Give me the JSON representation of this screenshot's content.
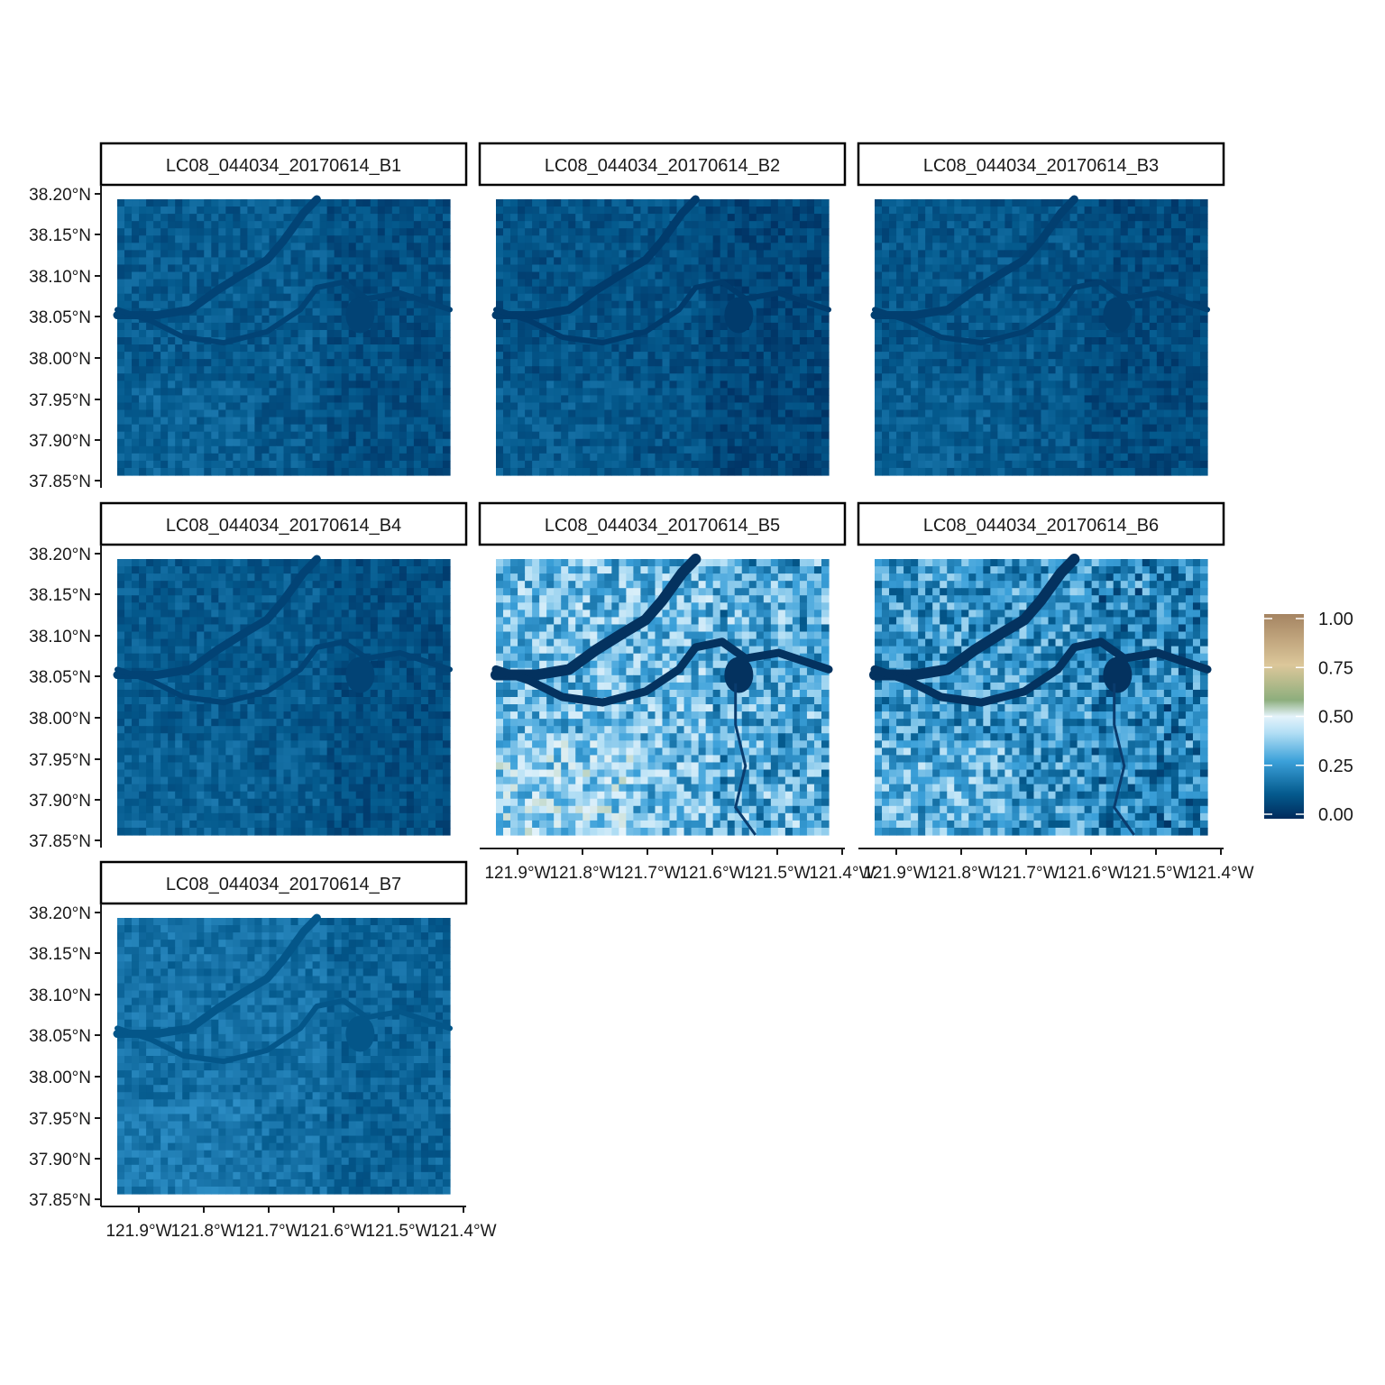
{
  "panels": [
    {
      "title": "LC08_044034_20170614_B1",
      "band": "B1",
      "mean_reflectance": 0.12
    },
    {
      "title": "LC08_044034_20170614_B2",
      "band": "B2",
      "mean_reflectance": 0.1
    },
    {
      "title": "LC08_044034_20170614_B3",
      "band": "B3",
      "mean_reflectance": 0.11
    },
    {
      "title": "LC08_044034_20170614_B4",
      "band": "B4",
      "mean_reflectance": 0.12
    },
    {
      "title": "LC08_044034_20170614_B5",
      "band": "B5",
      "mean_reflectance": 0.33
    },
    {
      "title": "LC08_044034_20170614_B6",
      "band": "B6",
      "mean_reflectance": 0.25
    },
    {
      "title": "LC08_044034_20170614_B7",
      "band": "B7",
      "mean_reflectance": 0.17
    }
  ],
  "y_ticks": [
    "38.20°N",
    "38.15°N",
    "38.10°N",
    "38.05°N",
    "38.00°N",
    "37.95°N",
    "37.90°N",
    "37.85°N"
  ],
  "x_ticks": [
    "121.9°W",
    "121.8°W",
    "121.7°W",
    "121.6°W",
    "121.5°W",
    "121.4°W"
  ],
  "legend": {
    "labels": [
      "1.00",
      "0.75",
      "0.50",
      "0.25",
      "0.00"
    ],
    "color_stops": [
      "#002b5c",
      "#045a8d",
      "#3ba0d9",
      "#b3dff5",
      "#e4f3fb",
      "#8dae7d",
      "#dcc79a",
      "#a58462"
    ]
  },
  "colors": {
    "background": "#ffffff",
    "strip_border": "#000000"
  }
}
